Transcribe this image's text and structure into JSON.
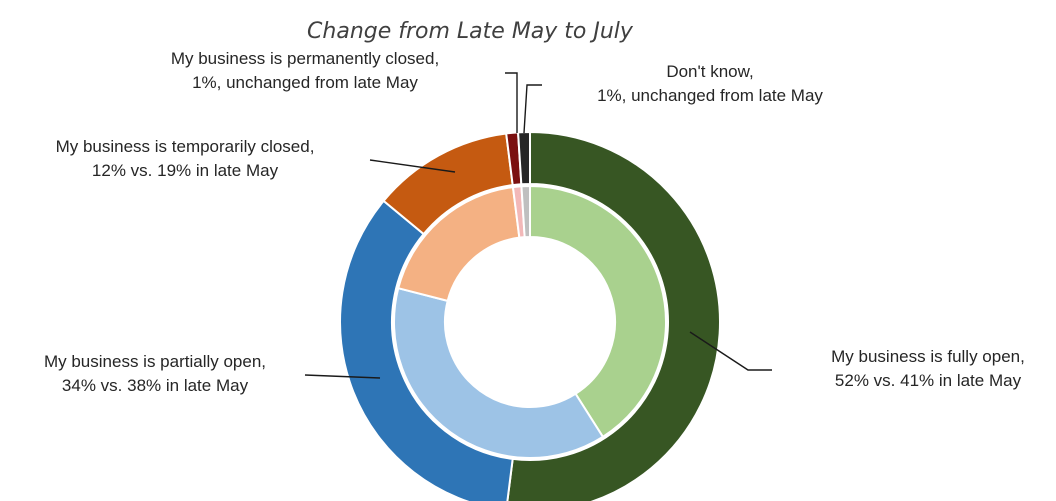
{
  "chart_data": {
    "type": "pie",
    "subtitle": "Change from Late May to July",
    "series": [
      {
        "period": "July",
        "ring": "outer",
        "slices": [
          {
            "category": "My business is fully open",
            "value": 52,
            "color": "#375623"
          },
          {
            "category": "My business is partially open",
            "value": 34,
            "color": "#2E75B6"
          },
          {
            "category": "My business is temporarily closed",
            "value": 12,
            "color": "#C55A11"
          },
          {
            "category": "My business is permanently closed",
            "value": 1,
            "color": "#7B1010"
          },
          {
            "category": "Don't know",
            "value": 1,
            "color": "#262626"
          }
        ]
      },
      {
        "period": "Late May",
        "ring": "inner",
        "slices": [
          {
            "category": "My business is fully open",
            "value": 41,
            "color": "#A9D18E"
          },
          {
            "category": "My business is partially open",
            "value": 38,
            "color": "#9DC3E6"
          },
          {
            "category": "My business is temporarily closed",
            "value": 19,
            "color": "#F4B183"
          },
          {
            "category": "My business is permanently closed",
            "value": 1,
            "color": "#F2B8B8"
          },
          {
            "category": "Don't know",
            "value": 1,
            "color": "#BFBFBF"
          }
        ]
      }
    ],
    "labels": [
      {
        "line1": "My business is fully open,",
        "line2": "52% vs. 41% in late May"
      },
      {
        "line1": "My business is partially open,",
        "line2": "34% vs. 38% in late May"
      },
      {
        "line1": "My business is temporarily closed,",
        "line2": "12% vs. 19% in late May"
      },
      {
        "line1": "My business is permanently closed,",
        "line2": "1%, unchanged from late May"
      },
      {
        "line1": "Don't know,",
        "line2": "1%, unchanged from late May"
      }
    ]
  }
}
